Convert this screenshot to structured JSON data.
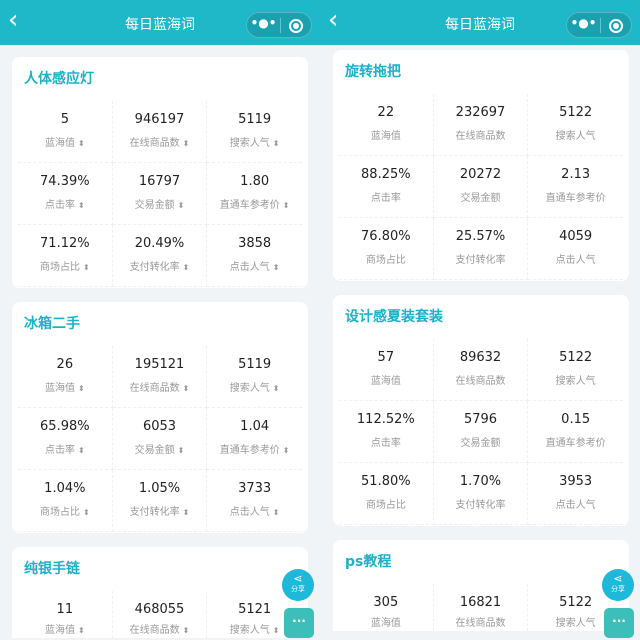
{
  "panels": [
    {
      "header": {
        "title": "每日蓝海词",
        "back_icon": "chevron-left-icon",
        "more_icon": "more-dots-icon",
        "close_icon": "target-close-icon"
      },
      "sortable": true,
      "cards": [
        {
          "title": "人体感应灯",
          "metrics": [
            {
              "value": "5",
              "label": "蓝海值"
            },
            {
              "value": "946197",
              "label": "在线商品数"
            },
            {
              "value": "5119",
              "label": "搜索人气"
            },
            {
              "value": "74.39%",
              "label": "点击率"
            },
            {
              "value": "16797",
              "label": "交易金额"
            },
            {
              "value": "1.80",
              "label": "直通车参考价"
            },
            {
              "value": "71.12%",
              "label": "商场占比"
            },
            {
              "value": "20.49%",
              "label": "支付转化率"
            },
            {
              "value": "3858",
              "label": "点击人气"
            }
          ]
        },
        {
          "title": "冰箱二手",
          "metrics": [
            {
              "value": "26",
              "label": "蓝海值"
            },
            {
              "value": "195121",
              "label": "在线商品数"
            },
            {
              "value": "5119",
              "label": "搜索人气"
            },
            {
              "value": "65.98%",
              "label": "点击率"
            },
            {
              "value": "6053",
              "label": "交易金额"
            },
            {
              "value": "1.04",
              "label": "直通车参考价"
            },
            {
              "value": "1.04%",
              "label": "商场占比"
            },
            {
              "value": "1.05%",
              "label": "支付转化率"
            },
            {
              "value": "3733",
              "label": "点击人气"
            }
          ]
        },
        {
          "title": "纯银手链",
          "metrics": [
            {
              "value": "11",
              "label": "蓝海值"
            },
            {
              "value": "468055",
              "label": "在线商品数"
            },
            {
              "value": "5121",
              "label": "搜索人气"
            }
          ]
        }
      ],
      "share_label": "分享"
    },
    {
      "header": {
        "title": "每日蓝海词",
        "back_icon": "chevron-left-icon",
        "more_icon": "more-dots-icon",
        "close_icon": "target-close-icon"
      },
      "sortable": false,
      "cards": [
        {
          "title": "旋转拖把",
          "metrics": [
            {
              "value": "22",
              "label": "蓝海值"
            },
            {
              "value": "232697",
              "label": "在线商品数"
            },
            {
              "value": "5122",
              "label": "搜索人气"
            },
            {
              "value": "88.25%",
              "label": "点击率"
            },
            {
              "value": "20272",
              "label": "交易金额"
            },
            {
              "value": "2.13",
              "label": "直通车参考价"
            },
            {
              "value": "76.80%",
              "label": "商场占比"
            },
            {
              "value": "25.57%",
              "label": "支付转化率"
            },
            {
              "value": "4059",
              "label": "点击人气"
            }
          ]
        },
        {
          "title": "设计感夏装套装",
          "metrics": [
            {
              "value": "57",
              "label": "蓝海值"
            },
            {
              "value": "89632",
              "label": "在线商品数"
            },
            {
              "value": "5122",
              "label": "搜索人气"
            },
            {
              "value": "112.52%",
              "label": "点击率"
            },
            {
              "value": "5796",
              "label": "交易金额"
            },
            {
              "value": "0.15",
              "label": "直通车参考价"
            },
            {
              "value": "51.80%",
              "label": "商场占比"
            },
            {
              "value": "1.70%",
              "label": "支付转化率"
            },
            {
              "value": "3953",
              "label": "点击人气"
            }
          ]
        },
        {
          "title": "ps教程",
          "metrics": [
            {
              "value": "305",
              "label": "蓝海值"
            },
            {
              "value": "16821",
              "label": "在线商品数"
            },
            {
              "value": "5122",
              "label": "搜索人气"
            }
          ]
        }
      ],
      "share_label": "分享"
    }
  ],
  "colors": {
    "header": "#1eb8c8",
    "title": "#1eb0c4"
  }
}
